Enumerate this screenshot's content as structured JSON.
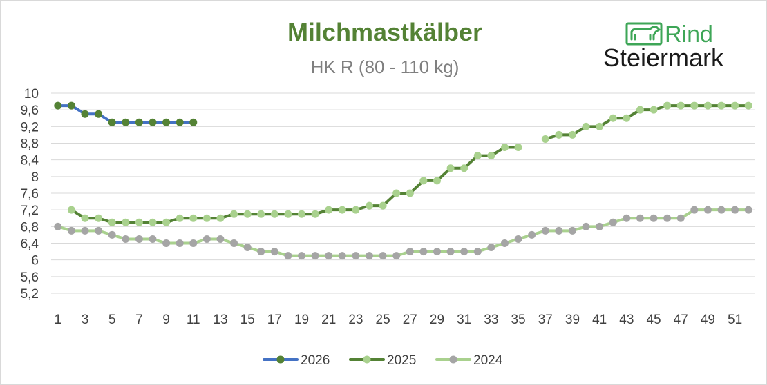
{
  "chart_data": {
    "type": "line",
    "title": "Milchmastkälber",
    "subtitle": "HK R (80 - 110 kg)",
    "xlabel": "",
    "ylabel": "",
    "x_ticks": [
      "1",
      "3",
      "5",
      "7",
      "9",
      "11",
      "13",
      "15",
      "17",
      "19",
      "21",
      "23",
      "25",
      "27",
      "29",
      "31",
      "33",
      "35",
      "37",
      "39",
      "41",
      "43",
      "45",
      "47",
      "49",
      "51"
    ],
    "y_ticks": [
      "5,2",
      "5,6",
      "6",
      "6,4",
      "6,8",
      "7,2",
      "7,6",
      "8",
      "8,4",
      "8,8",
      "9,2",
      "9,6",
      "10"
    ],
    "xlim": [
      1,
      52
    ],
    "ylim": [
      5.2,
      10
    ],
    "grid": "horizontal",
    "legend_position": "bottom",
    "series": [
      {
        "name": "2026",
        "line_color": "#4472c4",
        "marker_color": "#548235",
        "x": [
          1,
          2,
          3,
          4,
          5,
          6,
          7,
          8,
          9,
          10,
          11
        ],
        "values": [
          9.7,
          9.7,
          9.5,
          9.5,
          9.3,
          9.3,
          9.3,
          9.3,
          9.3,
          9.3,
          9.3
        ]
      },
      {
        "name": "2025",
        "line_color": "#548235",
        "marker_color": "#a9d18e",
        "x": [
          2,
          3,
          4,
          5,
          6,
          7,
          8,
          9,
          10,
          11,
          12,
          13,
          14,
          15,
          16,
          17,
          18,
          19,
          20,
          21,
          22,
          23,
          24,
          25,
          26,
          27,
          28,
          29,
          30,
          31,
          32,
          33,
          34,
          35,
          37,
          38,
          39,
          40,
          41,
          42,
          43,
          44,
          45,
          46,
          47,
          48,
          49,
          50,
          51,
          52
        ],
        "values": [
          7.2,
          7.0,
          7.0,
          6.9,
          6.9,
          6.9,
          6.9,
          6.9,
          7.0,
          7.0,
          7.0,
          7.0,
          7.1,
          7.1,
          7.1,
          7.1,
          7.1,
          7.1,
          7.1,
          7.2,
          7.2,
          7.2,
          7.3,
          7.3,
          7.6,
          7.6,
          7.9,
          7.9,
          8.2,
          8.2,
          8.5,
          8.5,
          8.7,
          8.7,
          8.9,
          9.0,
          9.0,
          9.2,
          9.2,
          9.4,
          9.4,
          9.6,
          9.6,
          9.7,
          9.7,
          9.7,
          9.7,
          9.7,
          9.7,
          9.7
        ],
        "gap_after_x": 35
      },
      {
        "name": "2024",
        "line_color": "#a9d18e",
        "marker_color": "#a5a5a5",
        "x": [
          1,
          2,
          3,
          4,
          5,
          6,
          7,
          8,
          9,
          10,
          11,
          12,
          13,
          14,
          15,
          16,
          17,
          18,
          19,
          20,
          21,
          22,
          23,
          24,
          25,
          26,
          27,
          28,
          29,
          30,
          31,
          32,
          33,
          34,
          35,
          36,
          37,
          38,
          39,
          40,
          41,
          42,
          43,
          44,
          45,
          46,
          47,
          48,
          49,
          50,
          51,
          52
        ],
        "values": [
          6.8,
          6.7,
          6.7,
          6.7,
          6.6,
          6.5,
          6.5,
          6.5,
          6.4,
          6.4,
          6.4,
          6.5,
          6.5,
          6.4,
          6.3,
          6.2,
          6.2,
          6.1,
          6.1,
          6.1,
          6.1,
          6.1,
          6.1,
          6.1,
          6.1,
          6.1,
          6.2,
          6.2,
          6.2,
          6.2,
          6.2,
          6.2,
          6.3,
          6.4,
          6.5,
          6.6,
          6.7,
          6.7,
          6.7,
          6.8,
          6.8,
          6.9,
          7.0,
          7.0,
          7.0,
          7.0,
          7.0,
          7.2,
          7.2,
          7.2,
          7.2,
          7.2
        ]
      }
    ]
  },
  "logo": {
    "name_top": "Rind",
    "name_bottom": "Steiermark",
    "brand_color": "#3ea657",
    "icon": "cow-icon"
  },
  "colors": {
    "grid": "#d9d9d9",
    "tick_text": "#404040",
    "title": "#548235",
    "subtitle": "#7f7f7f"
  }
}
